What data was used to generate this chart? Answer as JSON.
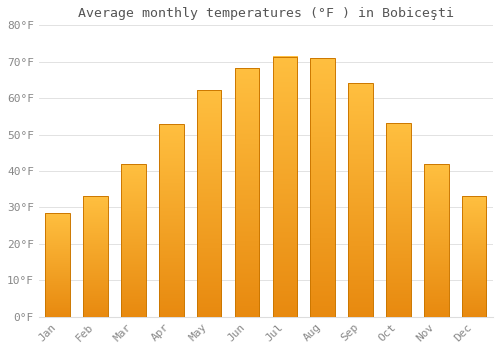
{
  "title": "Average monthly temperatures (°F ) in Bobiceşti",
  "months": [
    "Jan",
    "Feb",
    "Mar",
    "Apr",
    "May",
    "Jun",
    "Jul",
    "Aug",
    "Sep",
    "Oct",
    "Nov",
    "Dec"
  ],
  "values": [
    28.4,
    33.1,
    41.9,
    52.9,
    62.2,
    68.2,
    71.4,
    70.9,
    64.2,
    53.1,
    41.9,
    33.1
  ],
  "bar_color_top": "#FFB733",
  "bar_color_bottom": "#E8890A",
  "bar_edge_color": "#CC7700",
  "ylim": [
    0,
    80
  ],
  "ytick_step": 10,
  "background_color": "#FFFFFF",
  "grid_color": "#DDDDDD",
  "title_fontsize": 9.5,
  "tick_fontsize": 8,
  "font_family": "monospace"
}
